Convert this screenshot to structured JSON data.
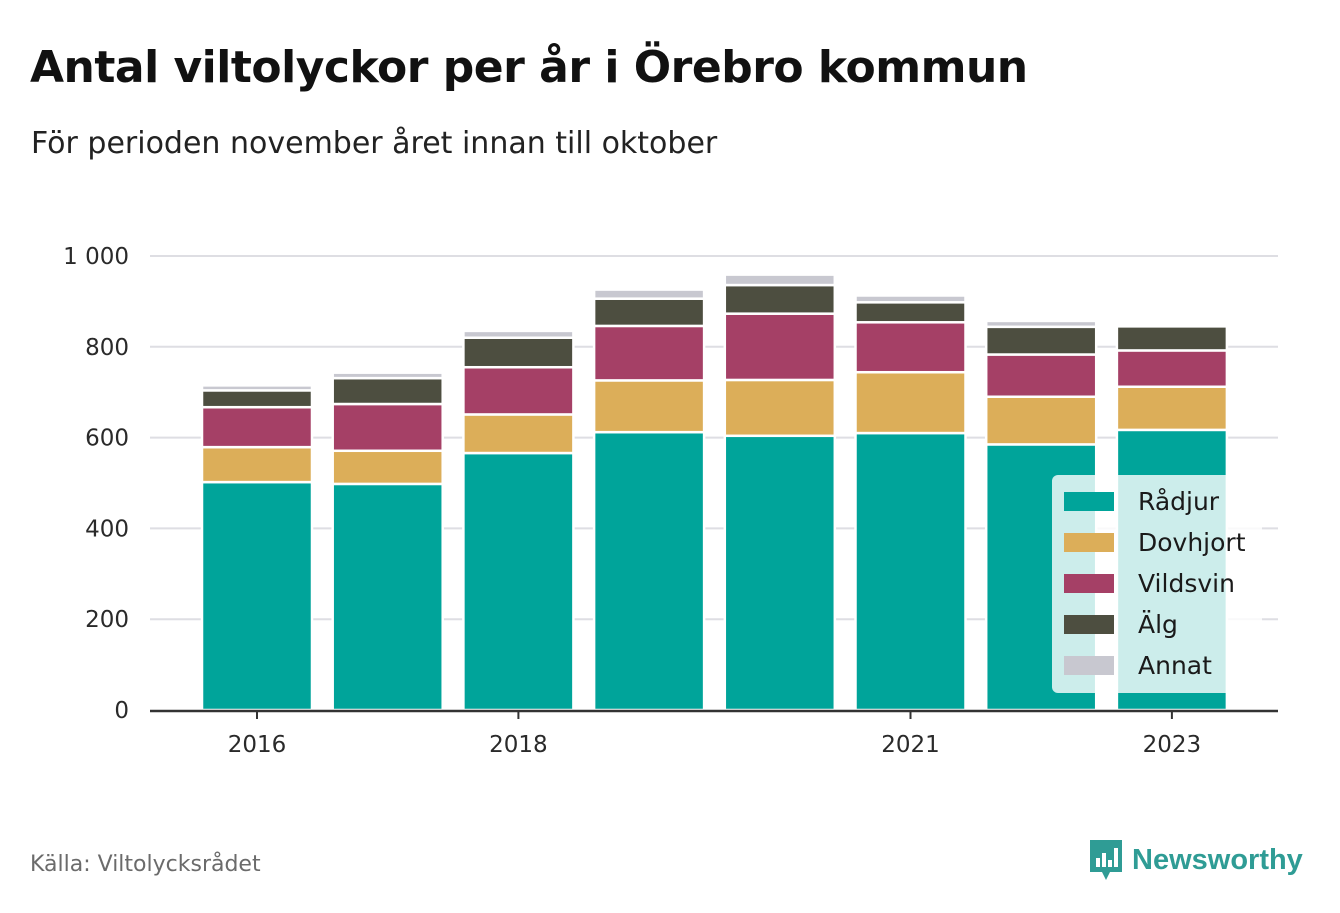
{
  "title": "Antal viltolyckor per år i Örebro kommun",
  "subtitle": "För perioden november året innan till oktober",
  "source": "Källa: Viltolycksrådet",
  "brand": {
    "name": "Newsworthy",
    "icon": "newsworthy-logo-icon",
    "color": "#2f9c95"
  },
  "chart_data": {
    "type": "bar",
    "stacked": true,
    "x": [
      2016,
      2017,
      2018,
      2019,
      2020,
      2021,
      2022,
      2023
    ],
    "xtick_labels": [
      "2016",
      "2018",
      "2021",
      "2023"
    ],
    "xtick_values": [
      2016,
      2018,
      2021,
      2023
    ],
    "ylim": [
      0,
      1000
    ],
    "yticks": [
      0,
      200,
      400,
      600,
      800,
      1000
    ],
    "ytick_labels": [
      "0",
      "200",
      "400",
      "600",
      "800",
      "1 000"
    ],
    "grid": true,
    "legend_position": "bottom-right",
    "series": [
      {
        "name": "Rådjur",
        "color": "#00a49a",
        "values": [
          502,
          498,
          566,
          612,
          604,
          610,
          585,
          617
        ]
      },
      {
        "name": "Dovhjort",
        "color": "#dcae59",
        "values": [
          77,
          73,
          85,
          114,
          123,
          134,
          105,
          95
        ]
      },
      {
        "name": "Vildsvin",
        "color": "#a54066",
        "values": [
          88,
          103,
          104,
          120,
          146,
          110,
          93,
          80
        ]
      },
      {
        "name": "Älg",
        "color": "#4d4e40",
        "values": [
          37,
          57,
          65,
          60,
          63,
          44,
          61,
          53
        ]
      },
      {
        "name": "Annat",
        "color": "#c8c8d0",
        "values": [
          11,
          12,
          15,
          20,
          23,
          15,
          13,
          0
        ]
      }
    ]
  }
}
